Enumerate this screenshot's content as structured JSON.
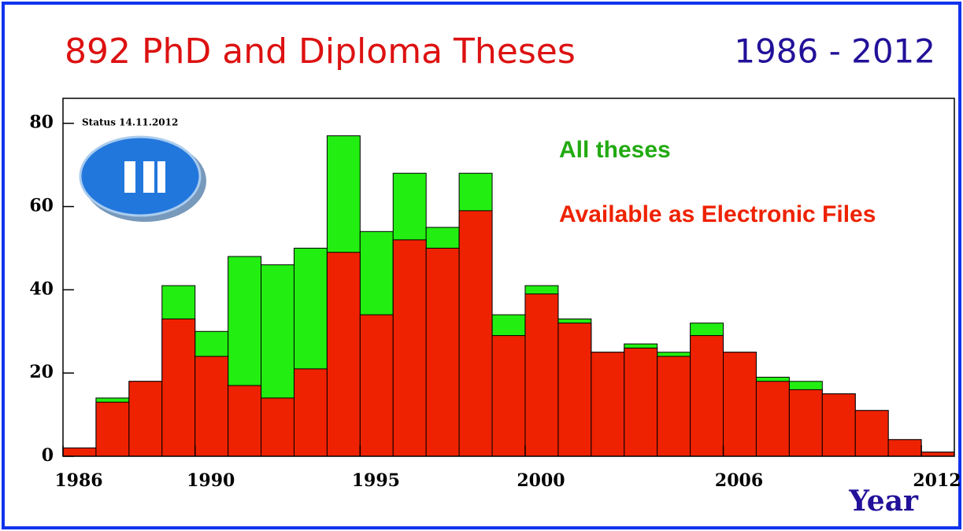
{
  "chart_data": {
    "type": "histogram",
    "title": "892 PhD and Diploma Theses",
    "subtitle": "1986 - 2012",
    "annotation": "Status 14.11.2012",
    "xlabel": "Year",
    "bins": [
      1986,
      1987,
      1988,
      1989,
      1990,
      1991,
      1992,
      1993,
      1994,
      1995,
      1996,
      1997,
      1998,
      1999,
      2000,
      2001,
      2002,
      2003,
      2004,
      2005,
      2006,
      2007,
      2008,
      2009,
      2010,
      2011,
      2012,
      2013
    ],
    "series": [
      {
        "name": "All theses",
        "color": "#22ee11",
        "values": [
          2,
          14,
          18,
          41,
          30,
          48,
          46,
          50,
          77,
          54,
          68,
          55,
          68,
          34,
          41,
          33,
          25,
          27,
          25,
          32,
          25,
          19,
          18,
          15,
          11,
          4,
          1
        ]
      },
      {
        "name": "Available as Electronic Files",
        "color": "#ee2200",
        "values": [
          2,
          13,
          18,
          33,
          24,
          17,
          14,
          21,
          49,
          34,
          52,
          50,
          59,
          29,
          39,
          32,
          25,
          26,
          24,
          29,
          25,
          18,
          16,
          15,
          11,
          4,
          1
        ]
      }
    ],
    "xlim": [
      1986,
      2013
    ],
    "xticks": [
      1986,
      1990,
      1995,
      2000,
      2006,
      2012
    ],
    "ylim": [
      0,
      86
    ],
    "yticks": [
      0,
      20,
      40,
      60,
      80
    ]
  }
}
